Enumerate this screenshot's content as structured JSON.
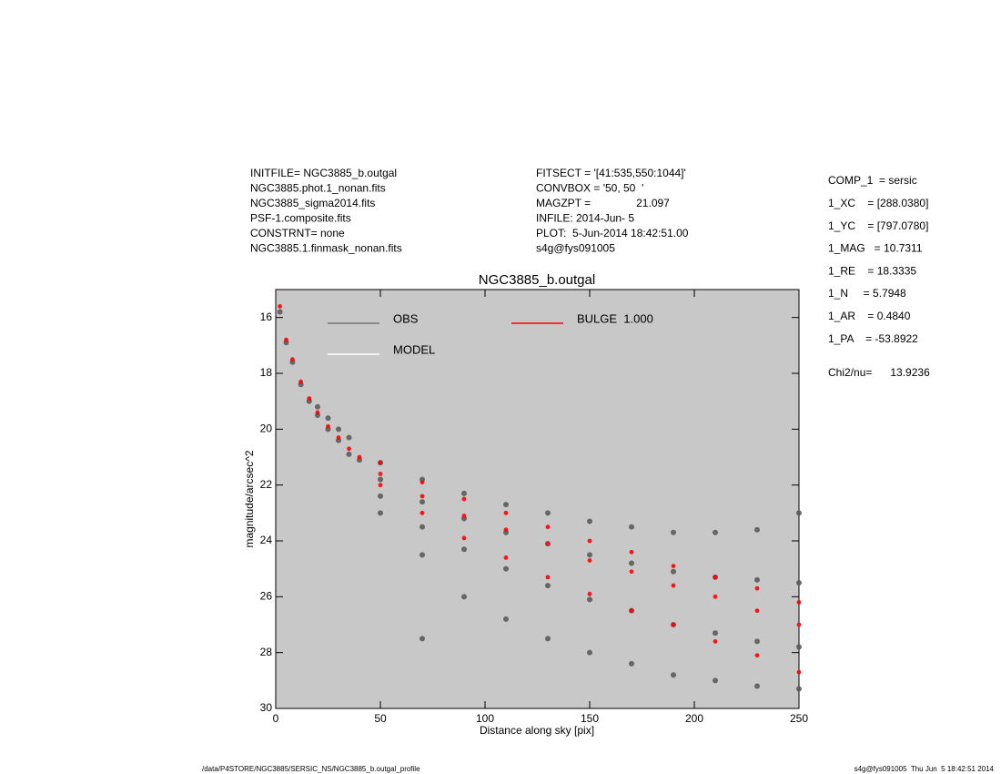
{
  "header": {
    "left": [
      "INITFILE= NGC3885_b.outgal",
      "NGC3885.phot.1_nonan.fits",
      "NGC3885_sigma2014.fits",
      "PSF-1.composite.fits",
      "CONSTRNT= none",
      "NGC3885.1.finmask_nonan.fits"
    ],
    "middle": [
      "FITSECT = '[41:535,550:1044]'",
      "CONVBOX = '50, 50  '",
      "MAGZPT =               21.097",
      "INFILE: 2014-Jun- 5",
      "PLOT:  5-Jun-2014 18:42:51.00",
      "s4g@fys091005"
    ]
  },
  "parameters": [
    "COMP_1  = sersic",
    "1_XC    = [288.0380]",
    "1_YC    = [797.0780]",
    "1_MAG   = 10.7311",
    "1_RE    = 18.3335",
    "1_N     = 5.7948",
    "1_AR    = 0.4840",
    "1_PA    = -53.8922"
  ],
  "chi2": "Chi2/nu=      13.9236",
  "footer": {
    "left": "/data/P4STORE/NGC3885/SERSIC_NS/NGC3885_b.outgal_profile",
    "right": "s4g@fys091005  Thu Jun  5 18:42:51 2014"
  },
  "chart_data": {
    "type": "scatter",
    "title": "NGC3885_b.outgal",
    "x_label": "Distance along sky [pix]",
    "y_label": "magnitude/arcsec^2",
    "xlim": [
      0,
      250
    ],
    "xticks": [
      0,
      50,
      100,
      150,
      200,
      250
    ],
    "ylim": [
      15,
      30
    ],
    "y_reversed": true,
    "yticks": [
      16,
      18,
      20,
      22,
      24,
      26,
      28,
      30
    ],
    "background": "#c8c8c8",
    "series": [
      {
        "name": "OBS",
        "color": "#555555",
        "x": [
          2,
          5,
          8,
          12,
          16,
          20,
          25,
          30,
          35,
          40,
          20,
          25,
          30,
          35,
          50,
          50,
          50,
          50,
          70,
          70,
          70,
          70,
          70,
          90,
          90,
          90,
          90,
          110,
          110,
          110,
          110,
          130,
          130,
          130,
          130,
          150,
          150,
          150,
          150,
          170,
          170,
          170,
          170,
          190,
          190,
          190,
          190,
          210,
          210,
          210,
          210,
          230,
          230,
          230,
          230,
          250,
          250,
          250,
          250
        ],
        "values": [
          15.8,
          16.9,
          17.6,
          18.4,
          19.0,
          19.5,
          20.0,
          20.4,
          20.9,
          21.1,
          19.2,
          19.6,
          20.0,
          20.3,
          21.2,
          21.8,
          22.4,
          23.0,
          21.8,
          22.6,
          23.5,
          24.5,
          27.5,
          22.3,
          23.2,
          24.3,
          26.0,
          22.7,
          23.7,
          25.0,
          26.8,
          23.0,
          24.1,
          25.6,
          27.5,
          23.3,
          24.5,
          26.1,
          28.0,
          23.5,
          24.8,
          26.5,
          28.4,
          23.7,
          25.1,
          27.0,
          28.8,
          23.7,
          25.3,
          27.3,
          29.0,
          23.6,
          25.4,
          27.6,
          29.2,
          23.0,
          25.5,
          27.8,
          29.3
        ]
      },
      {
        "name": "MODEL",
        "color": "#ffffff",
        "x": [
          50,
          90,
          130,
          170,
          210,
          250
        ],
        "values": [
          21.6,
          23.1,
          24.1,
          25.1,
          26.0,
          27.0
        ]
      },
      {
        "name": "BULGE  1.000",
        "color": "#ff0000",
        "x": [
          2,
          5,
          8,
          12,
          16,
          20,
          25,
          30,
          35,
          40,
          50,
          50,
          50,
          70,
          70,
          70,
          90,
          90,
          90,
          110,
          110,
          110,
          130,
          130,
          130,
          150,
          150,
          150,
          170,
          170,
          170,
          190,
          190,
          190,
          210,
          210,
          210,
          230,
          230,
          230,
          250,
          250,
          250
        ],
        "values": [
          15.6,
          16.8,
          17.5,
          18.3,
          18.9,
          19.4,
          19.9,
          20.3,
          20.7,
          21.0,
          21.2,
          21.6,
          22.0,
          21.9,
          22.4,
          23.0,
          22.5,
          23.1,
          23.9,
          23.0,
          23.6,
          24.6,
          23.5,
          24.1,
          25.3,
          24.0,
          24.7,
          25.9,
          24.4,
          25.1,
          26.5,
          24.9,
          25.6,
          27.0,
          25.3,
          26.0,
          27.6,
          25.7,
          26.5,
          28.1,
          26.2,
          27.0,
          28.7
        ]
      }
    ]
  }
}
